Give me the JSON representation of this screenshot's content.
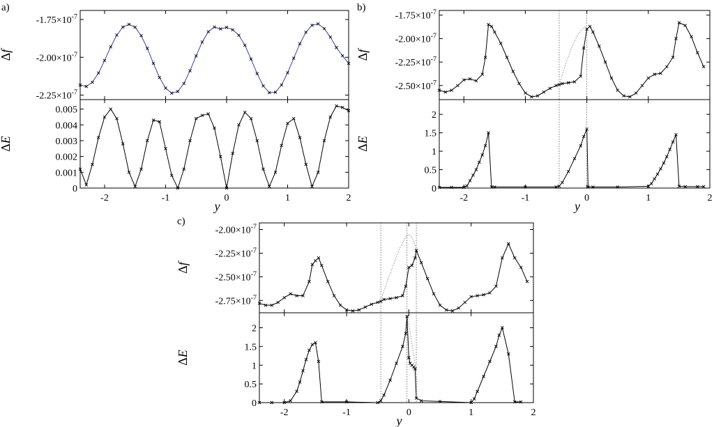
{
  "chart_data": [
    {
      "panel": "a)",
      "type": "line",
      "x_label": "y",
      "xlim": [
        -2.4,
        2.0
      ],
      "x_ticks": [
        -2,
        -1,
        0,
        1,
        2
      ],
      "x_tick_labels": [
        "-2",
        "-1",
        "0",
        "1",
        "2"
      ],
      "top": {
        "ylabel_delta": "Δ",
        "ylabel_var": "f",
        "ylim": [
          -2.28e-07,
          -1.69e-07
        ],
        "y_ticks": [
          -2.25e-07,
          -2e-07,
          -1.75e-07
        ],
        "y_tick_labels": [
          "-2.25×10",
          "-2.00×10",
          "-1.75×10"
        ],
        "y_tick_exp": "-7",
        "series": [
          {
            "color": "#3b3bb0",
            "x": [
              -2.4,
              -2.3,
              -2.2,
              -2.1,
              -2.0,
              -1.9,
              -1.8,
              -1.7,
              -1.6,
              -1.5,
              -1.4,
              -1.3,
              -1.2,
              -1.1,
              -1.0,
              -0.9,
              -0.8,
              -0.7,
              -0.6,
              -0.5,
              -0.4,
              -0.3,
              -0.2,
              -0.1,
              0.0,
              0.1,
              0.2,
              0.3,
              0.4,
              0.5,
              0.6,
              0.7,
              0.8,
              0.9,
              1.0,
              1.1,
              1.2,
              1.3,
              1.4,
              1.5,
              1.6,
              1.7,
              1.8,
              1.9,
              2.0
            ],
            "y": [
              -2.184e-07,
              -2.193e-07,
              -2.165e-07,
              -2.104e-07,
              -2.021e-07,
              -1.931e-07,
              -1.853e-07,
              -1.8e-07,
              -1.782e-07,
              -1.801e-07,
              -1.857e-07,
              -1.941e-07,
              -2.04e-07,
              -2.134e-07,
              -2.204e-07,
              -2.237e-07,
              -2.226e-07,
              -2.173e-07,
              -2.089e-07,
              -1.991e-07,
              -1.899e-07,
              -1.831e-07,
              -1.8e-07,
              -1.812e-07,
              -1.802e-07,
              -1.818e-07,
              -1.854e-07,
              -1.92e-07,
              -2.012e-07,
              -2.108e-07,
              -2.189e-07,
              -2.234e-07,
              -2.231e-07,
              -2.183e-07,
              -2.102e-07,
              -2.006e-07,
              -1.911e-07,
              -1.834e-07,
              -1.788e-07,
              -1.779e-07,
              -1.81e-07,
              -1.866e-07,
              -1.936e-07,
              -1.99e-07,
              -2.04e-07
            ]
          }
        ]
      },
      "bottom": {
        "ylabel_delta": "Δ",
        "ylabel_var": "E",
        "ylim": [
          0,
          0.0056
        ],
        "y_ticks": [
          0,
          0.001,
          0.002,
          0.003,
          0.004,
          0.005
        ],
        "y_tick_labels": [
          "0",
          "0.001",
          "0.002",
          "0.003",
          "0.004",
          "0.005"
        ],
        "series": [
          {
            "x": [
              -2.4,
              -2.3,
              -2.2,
              -2.1,
              -2.0,
              -1.9,
              -1.8,
              -1.7,
              -1.6,
              -1.5,
              -1.4,
              -1.3,
              -1.2,
              -1.1,
              -1.0,
              -0.9,
              -0.8,
              -0.7,
              -0.6,
              -0.5,
              -0.4,
              -0.3,
              -0.2,
              -0.1,
              0.0,
              0.1,
              0.2,
              0.3,
              0.4,
              0.5,
              0.6,
              0.7,
              0.8,
              0.9,
              1.0,
              1.1,
              1.2,
              1.3,
              1.4,
              1.5,
              1.6,
              1.7,
              1.8,
              1.9,
              2.0
            ],
            "y": [
              0.0012,
              0.0002,
              0.0015,
              0.0032,
              0.0045,
              0.005,
              0.0044,
              0.0028,
              0.001,
              0.0001,
              0.0012,
              0.003,
              0.0043,
              0.0042,
              0.0025,
              0.0008,
              0.0,
              0.0012,
              0.003,
              0.0044,
              0.0046,
              0.0047,
              0.0038,
              0.002,
              0.0,
              0.0022,
              0.004,
              0.0048,
              0.0044,
              0.003,
              0.0012,
              0.0001,
              0.001,
              0.0027,
              0.0041,
              0.0044,
              0.0032,
              0.0015,
              0.0001,
              0.001,
              0.003,
              0.0045,
              0.0052,
              0.0051,
              0.0049
            ]
          }
        ]
      }
    },
    {
      "panel": "b)",
      "type": "line",
      "x_label": "y",
      "xlim": [
        -2.4,
        2.0
      ],
      "x_ticks": [
        -2,
        -1,
        0,
        1,
        2
      ],
      "x_tick_labels": [
        "-2",
        "-1",
        "0",
        "1",
        "2"
      ],
      "vlines": [
        -0.45,
        0.0
      ],
      "top": {
        "ylabel_delta": "Δ",
        "ylabel_var": "f",
        "ylim": [
          -2.65e-07,
          -1.7e-07
        ],
        "y_ticks": [
          -2.5e-07,
          -2.25e-07,
          -2e-07,
          -1.75e-07
        ],
        "y_tick_labels": [
          "-2.50×10",
          "-2.25×10",
          "-2.00×10",
          "-1.75×10"
        ],
        "y_tick_exp": "-7",
        "guide_x": [
          -0.45,
          -0.35,
          -0.25,
          -0.15,
          -0.05,
          0.0
        ],
        "guide_y": [
          -2.49e-07,
          -2.28e-07,
          -2.1e-07,
          -1.96e-07,
          -1.88e-07,
          -1.87e-07
        ],
        "series": [
          {
            "x": [
              -2.4,
              -2.3,
              -2.2,
              -2.1,
              -2.0,
              -1.9,
              -1.8,
              -1.7,
              -1.65,
              -1.6,
              -1.55,
              -1.5,
              -1.4,
              -1.3,
              -1.2,
              -1.1,
              -1.0,
              -0.9,
              -0.8,
              -0.7,
              -0.6,
              -0.5,
              -0.45,
              -0.4,
              -0.3,
              -0.2,
              -0.1,
              -0.05,
              0.0,
              0.05,
              0.1,
              0.2,
              0.3,
              0.4,
              0.5,
              0.6,
              0.7,
              0.8,
              0.9,
              1.0,
              1.1,
              1.2,
              1.3,
              1.4,
              1.45,
              1.5,
              1.6,
              1.7,
              1.8,
              1.9
            ],
            "y": [
              -2.55e-07,
              -2.57e-07,
              -2.55e-07,
              -2.5e-07,
              -2.44e-07,
              -2.43e-07,
              -2.45e-07,
              -2.38e-07,
              -2.2e-07,
              -1.85e-07,
              -1.87e-07,
              -1.93e-07,
              -2.05e-07,
              -2.2e-07,
              -2.35e-07,
              -2.48e-07,
              -2.58e-07,
              -2.62e-07,
              -2.61e-07,
              -2.57e-07,
              -2.53e-07,
              -2.5e-07,
              -2.49e-07,
              -2.48e-07,
              -2.47e-07,
              -2.46e-07,
              -2.4e-07,
              -2.1e-07,
              -1.9e-07,
              -1.87e-07,
              -1.93e-07,
              -2.08e-07,
              -2.25e-07,
              -2.42e-07,
              -2.55e-07,
              -2.61e-07,
              -2.62e-07,
              -2.58e-07,
              -2.5e-07,
              -2.42e-07,
              -2.38e-07,
              -2.37e-07,
              -2.3e-07,
              -2.2e-07,
              -2e-07,
              -1.83e-07,
              -1.86e-07,
              -1.98e-07,
              -2.15e-07,
              -2.3e-07
            ]
          }
        ]
      },
      "bottom": {
        "ylabel_delta": "Δ",
        "ylabel_var": "E",
        "ylim": [
          0,
          2.4
        ],
        "y_ticks": [
          0,
          0.5,
          1,
          1.5,
          2
        ],
        "y_tick_labels": [
          "0",
          "0.5",
          "1",
          "1.5",
          "2"
        ],
        "series": [
          {
            "x": [
              -2.4,
              -2.2,
              -2.0,
              -1.95,
              -1.9,
              -1.85,
              -1.8,
              -1.75,
              -1.7,
              -1.65,
              -1.6,
              -1.55,
              -1.5,
              -1.0,
              -0.5,
              -0.45,
              -0.4,
              -0.3,
              -0.2,
              -0.1,
              -0.05,
              0.0,
              0.02,
              0.1,
              0.5,
              1.0,
              1.05,
              1.1,
              1.15,
              1.2,
              1.25,
              1.3,
              1.35,
              1.4,
              1.45,
              1.5,
              1.6,
              1.8,
              1.9
            ],
            "y": [
              0.02,
              0.02,
              0.02,
              0.06,
              0.2,
              0.35,
              0.5,
              0.7,
              0.9,
              1.15,
              1.5,
              0.03,
              0.03,
              0.03,
              0.03,
              0.05,
              0.15,
              0.45,
              0.8,
              1.15,
              1.4,
              1.6,
              0.03,
              0.03,
              0.03,
              0.05,
              0.12,
              0.25,
              0.38,
              0.52,
              0.68,
              0.85,
              1.05,
              1.25,
              1.45,
              0.05,
              0.04,
              0.04,
              0.04
            ]
          }
        ]
      }
    },
    {
      "panel": "c)",
      "type": "line",
      "x_label": "y",
      "xlim": [
        -2.4,
        2.0
      ],
      "x_ticks": [
        -2,
        -1,
        0,
        1,
        2
      ],
      "x_tick_labels": [
        "-2",
        "-1",
        "0",
        "1",
        "2"
      ],
      "vlines": [
        -0.45,
        -0.03,
        0.12
      ],
      "top": {
        "ylabel_delta": "Δ",
        "ylabel_var": "f",
        "ylim": [
          -2.88e-07,
          -1.93e-07
        ],
        "y_ticks": [
          -2.75e-07,
          -2.5e-07,
          -2.25e-07,
          -2e-07
        ],
        "y_tick_labels": [
          "-2.75×10",
          "-2.50×10",
          "-2.25×10",
          "-2.00×10"
        ],
        "y_tick_exp": "-7",
        "guide_x": [
          -0.45,
          -0.35,
          -0.25,
          -0.15,
          -0.05,
          0.0,
          0.05,
          0.12
        ],
        "guide_y": [
          -2.75e-07,
          -2.55e-07,
          -2.38e-07,
          -2.2e-07,
          -2.08e-07,
          -2.05e-07,
          -2.08e-07,
          -2.2e-07
        ],
        "series": [
          {
            "x": [
              -2.4,
              -2.3,
              -2.2,
              -2.1,
              -2.0,
              -1.9,
              -1.8,
              -1.7,
              -1.6,
              -1.55,
              -1.5,
              -1.45,
              -1.4,
              -1.3,
              -1.2,
              -1.1,
              -1.0,
              -0.9,
              -0.8,
              -0.7,
              -0.6,
              -0.5,
              -0.45,
              -0.4,
              -0.3,
              -0.2,
              -0.1,
              -0.05,
              0.0,
              0.05,
              0.1,
              0.12,
              0.2,
              0.3,
              0.4,
              0.5,
              0.6,
              0.7,
              0.8,
              0.9,
              1.0,
              1.1,
              1.2,
              1.3,
              1.4,
              1.5,
              1.6,
              1.7,
              1.8,
              1.9
            ],
            "y": [
              -2.78e-07,
              -2.8e-07,
              -2.8e-07,
              -2.77e-07,
              -2.72e-07,
              -2.68e-07,
              -2.7e-07,
              -2.7e-07,
              -2.55e-07,
              -2.37e-07,
              -2.33e-07,
              -2.3e-07,
              -2.38e-07,
              -2.55e-07,
              -2.7e-07,
              -2.8e-07,
              -2.85e-07,
              -2.86e-07,
              -2.85e-07,
              -2.82e-07,
              -2.79e-07,
              -2.77e-07,
              -2.76e-07,
              -2.74e-07,
              -2.73e-07,
              -2.72e-07,
              -2.7e-07,
              -2.6e-07,
              -2.4e-07,
              -2.38e-07,
              -2.3e-07,
              -2.22e-07,
              -2.35e-07,
              -2.52e-07,
              -2.68e-07,
              -2.8e-07,
              -2.85e-07,
              -2.86e-07,
              -2.83e-07,
              -2.77e-07,
              -2.71e-07,
              -2.7e-07,
              -2.69e-07,
              -2.67e-07,
              -2.6e-07,
              -2.3e-07,
              -2.15e-07,
              -2.3e-07,
              -2.4e-07,
              -2.55e-07
            ]
          }
        ]
      },
      "bottom": {
        "ylabel_delta": "Δ",
        "ylabel_var": "E",
        "ylim": [
          0,
          2.4
        ],
        "y_ticks": [
          0,
          0.5,
          1,
          1.5,
          2
        ],
        "y_tick_labels": [
          "0",
          "0.5",
          "1",
          "1.5",
          "2"
        ],
        "guide_x": [
          -0.03,
          0.02,
          0.07,
          0.12
        ],
        "guide_y": [
          2.3,
          1.9,
          1.35,
          0.85
        ],
        "series": [
          {
            "x": [
              -2.4,
              -2.2,
              -2.0,
              -1.9,
              -1.8,
              -1.75,
              -1.7,
              -1.65,
              -1.6,
              -1.55,
              -1.5,
              -1.45,
              -1.4,
              -1.0,
              -0.5,
              -0.45,
              -0.4,
              -0.3,
              -0.2,
              -0.1,
              -0.05,
              -0.03,
              0.0,
              0.02,
              0.05,
              0.08,
              0.1,
              0.12,
              0.2,
              0.5,
              1.0,
              1.05,
              1.1,
              1.2,
              1.3,
              1.4,
              1.45,
              1.5,
              1.6,
              1.7,
              1.8
            ],
            "y": [
              0.0,
              0.0,
              0.0,
              0.05,
              0.3,
              0.55,
              0.85,
              1.15,
              1.4,
              1.55,
              1.6,
              1.1,
              0.02,
              0.02,
              0.0,
              0.05,
              0.2,
              0.6,
              1.05,
              1.5,
              1.85,
              2.3,
              1.2,
              1.05,
              1.0,
              0.95,
              0.9,
              0.12,
              0.05,
              0.03,
              0.0,
              0.1,
              0.3,
              0.7,
              1.1,
              1.5,
              1.8,
              2.0,
              1.3,
              0.02,
              0.02
            ]
          }
        ]
      }
    }
  ]
}
